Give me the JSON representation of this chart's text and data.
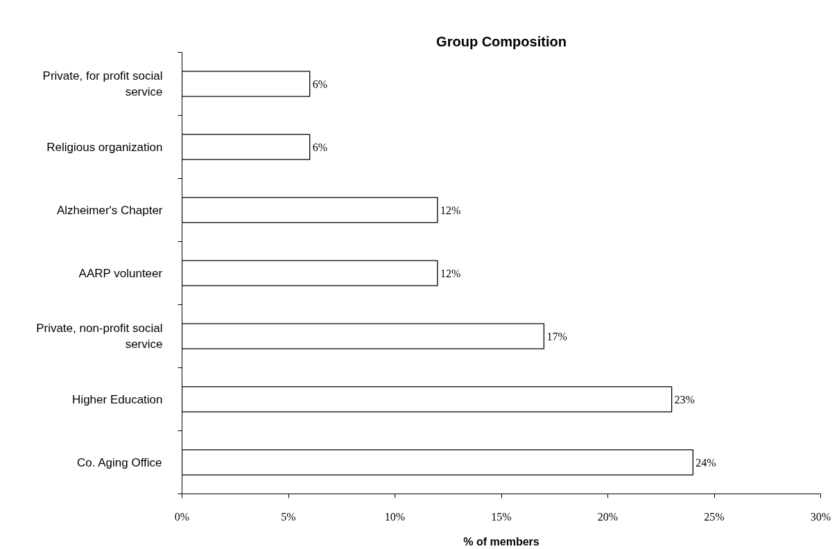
{
  "chart_data": {
    "type": "bar",
    "orientation": "horizontal",
    "title": "Group Composition",
    "xlabel": "% of members",
    "categories": [
      "Private, for profit social service",
      "Religious organization",
      "Alzheimer's Chapter",
      "AARP volunteer",
      "Private, non-profit social service",
      "Higher Education",
      "Co. Aging Office"
    ],
    "values": [
      6,
      6,
      12,
      12,
      17,
      23,
      24
    ],
    "value_labels": [
      "6%",
      "6%",
      "12%",
      "12%",
      "17%",
      "23%",
      "24%"
    ],
    "color": "#ffffff",
    "xlim": [
      0,
      30
    ],
    "xticks": [
      {
        "value": 0,
        "label": "0%"
      },
      {
        "value": 5,
        "label": "5%"
      },
      {
        "value": 10,
        "label": "10%"
      },
      {
        "value": 15,
        "label": "15%"
      },
      {
        "value": 20,
        "label": "20%"
      },
      {
        "value": 25,
        "label": "25%"
      },
      {
        "value": 30,
        "label": "30%"
      }
    ],
    "grid": false
  }
}
